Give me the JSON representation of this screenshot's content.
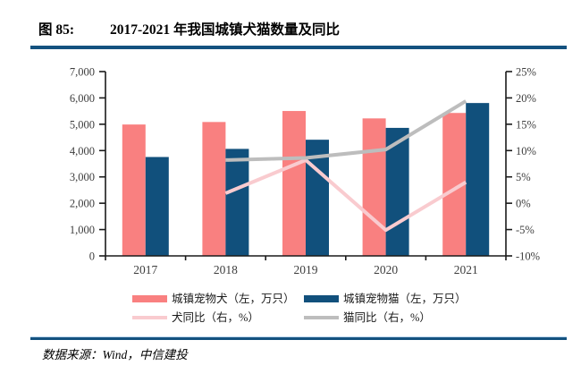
{
  "header": {
    "figure_label": "图 85:",
    "title": "2017-2021 年我国城镇犬猫数量及同比"
  },
  "footer": {
    "source": "数据来源：Wind，中信建投"
  },
  "colors": {
    "dog_bar": "#F98080",
    "cat_bar": "#11507C",
    "dog_line": "#F9CBCF",
    "cat_line": "#BDBDBD",
    "rule": "#14527F",
    "axis": "#1a1a1a",
    "tick_text": "#3d3d3d"
  },
  "chart_data": {
    "type": "bar",
    "subtype": "clustered-bars-with-lines",
    "title": "2017-2021 年我国城镇犬猫数量及同比",
    "categories": [
      "2017",
      "2018",
      "2019",
      "2020",
      "2021"
    ],
    "series": [
      {
        "name": "城镇宠物犬（左，万只）",
        "type": "bar",
        "axis": "left",
        "color": "#F98080",
        "values": [
          4990,
          5085,
          5503,
          5222,
          5429
        ]
      },
      {
        "name": "城镇宠物猫（左，万只）",
        "type": "bar",
        "axis": "left",
        "color": "#11507C",
        "values": [
          3756,
          4064,
          4412,
          4862,
          5806
        ]
      },
      {
        "name": "犬同比（右，%）",
        "type": "line",
        "axis": "right",
        "color": "#F9CBCF",
        "values": [
          null,
          1.9,
          8.2,
          -5.1,
          4.0
        ]
      },
      {
        "name": "猫同比（右，%）",
        "type": "line",
        "axis": "right",
        "color": "#BDBDBD",
        "values": [
          null,
          8.2,
          8.6,
          10.2,
          19.4
        ]
      }
    ],
    "left_axis": {
      "min": 0,
      "max": 7000,
      "step": 1000,
      "tick_labels": [
        "0",
        "1,000",
        "2,000",
        "3,000",
        "4,000",
        "5,000",
        "6,000",
        "7,000"
      ]
    },
    "right_axis": {
      "min": -10,
      "max": 25,
      "step": 5,
      "tick_labels": [
        "-10%",
        "-5%",
        "0%",
        "5%",
        "10%",
        "15%",
        "20%",
        "25%"
      ]
    },
    "grid": false,
    "legend_position": "bottom"
  }
}
